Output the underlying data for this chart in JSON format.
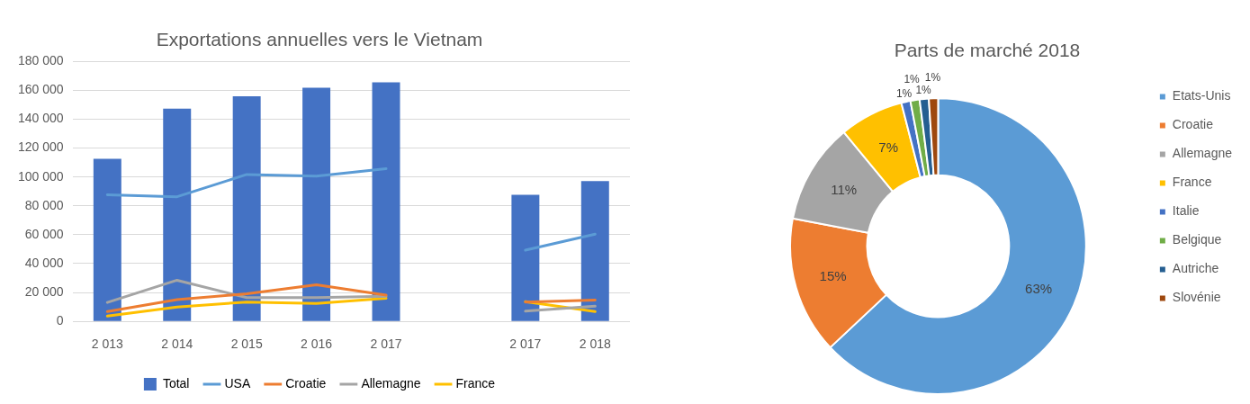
{
  "chart_data": [
    {
      "type": "bar",
      "title": "Exportations annuelles vers le Vietnam",
      "categories": [
        "2 013",
        "2 014",
        "2 015",
        "2 016",
        "2 017",
        null,
        "2 017",
        "2 018"
      ],
      "series": [
        {
          "name": "Total",
          "type": "bar",
          "color": "#4472c4",
          "values": [
            112500,
            147300,
            155800,
            161800,
            165500,
            null,
            87700,
            97100
          ]
        },
        {
          "name": "USA",
          "type": "line",
          "color": "#5b9bd5",
          "values": [
            87700,
            86300,
            101700,
            100600,
            105700,
            null,
            49300,
            60400
          ]
        },
        {
          "name": "Croatie",
          "type": "line",
          "color": "#ed7d31",
          "values": [
            6800,
            15100,
            19100,
            25400,
            18200,
            null,
            13400,
            14800
          ]
        },
        {
          "name": "Allemagne",
          "type": "line",
          "color": "#a5a5a5",
          "values": [
            13100,
            28500,
            16500,
            16500,
            17400,
            null,
            7100,
            10500
          ]
        },
        {
          "name": "France",
          "type": "line",
          "color": "#ffc000",
          "values": [
            3700,
            10000,
            13400,
            12500,
            16000,
            null,
            13700,
            6800
          ]
        }
      ],
      "ylim": [
        0,
        180000
      ],
      "yticks": [
        {
          "value": 0,
          "label": "0"
        },
        {
          "value": 20000,
          "label": "20 000"
        },
        {
          "value": 40000,
          "label": "40 000"
        },
        {
          "value": 60000,
          "label": "60 000"
        },
        {
          "value": 80000,
          "label": "80 000"
        },
        {
          "value": 100000,
          "label": "100 000"
        },
        {
          "value": 120000,
          "label": "120 000"
        },
        {
          "value": 140000,
          "label": "140 000"
        },
        {
          "value": 160000,
          "label": "160 000"
        },
        {
          "value": 180000,
          "label": "180 000"
        }
      ],
      "grid": "y",
      "legend": "bottom",
      "marker": "none"
    },
    {
      "type": "donut",
      "title": "Parts de marché 2018",
      "categories": [
        "Etats-Unis",
        "Croatie",
        "Allemagne",
        "France",
        "Italie",
        "Belgique",
        "Autriche",
        "Slovénie"
      ],
      "values": [
        63,
        15,
        11,
        7,
        1,
        1,
        1,
        1
      ],
      "colors": [
        "#5b9bd5",
        "#ed7d31",
        "#a5a5a5",
        "#ffc000",
        "#4472c4",
        "#70ad47",
        "#255e91",
        "#9e480e"
      ],
      "value_labels": [
        "63%",
        "15%",
        "11%",
        "7%",
        "1%",
        "1%",
        "1%",
        "1%"
      ],
      "legend": "right"
    }
  ]
}
